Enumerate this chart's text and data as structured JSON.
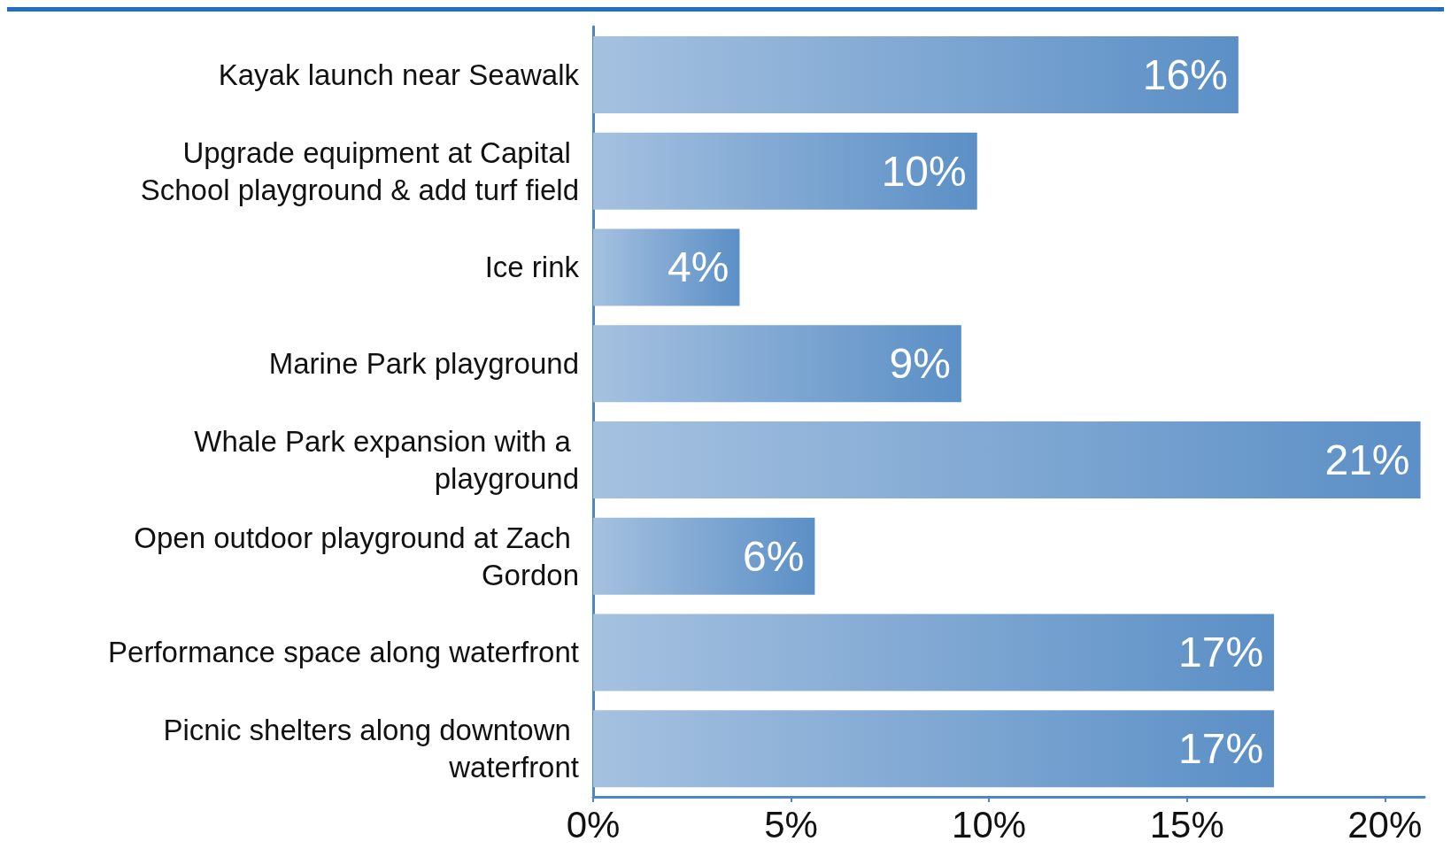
{
  "chart_data": {
    "type": "bar",
    "orientation": "horizontal",
    "categories": [
      "Kayak launch near Seawalk",
      "Upgrade equipment at Capital School playground & add turf field",
      "Ice rink",
      "Marine Park playground",
      "Whale Park expansion with a playground",
      "Open outdoor playground at Zach Gordon",
      "Performance space along waterfront",
      "Picnic shelters along downtown waterfront"
    ],
    "values": [
      16.3,
      9.7,
      3.7,
      9.3,
      20.9,
      5.6,
      17.2,
      17.2
    ],
    "value_labels": [
      "16%",
      "10%",
      "4%",
      "9%",
      "21%",
      "6%",
      "17%",
      "17%"
    ],
    "color": "#5b8fc6",
    "xlim": [
      0,
      21
    ],
    "xticks": [
      {
        "value": 0,
        "label": "0%"
      },
      {
        "value": 5,
        "label": "5%"
      },
      {
        "value": 10,
        "label": "10%"
      },
      {
        "value": 15,
        "label": "15%"
      },
      {
        "value": 20,
        "label": "20%"
      }
    ],
    "grid": false
  }
}
